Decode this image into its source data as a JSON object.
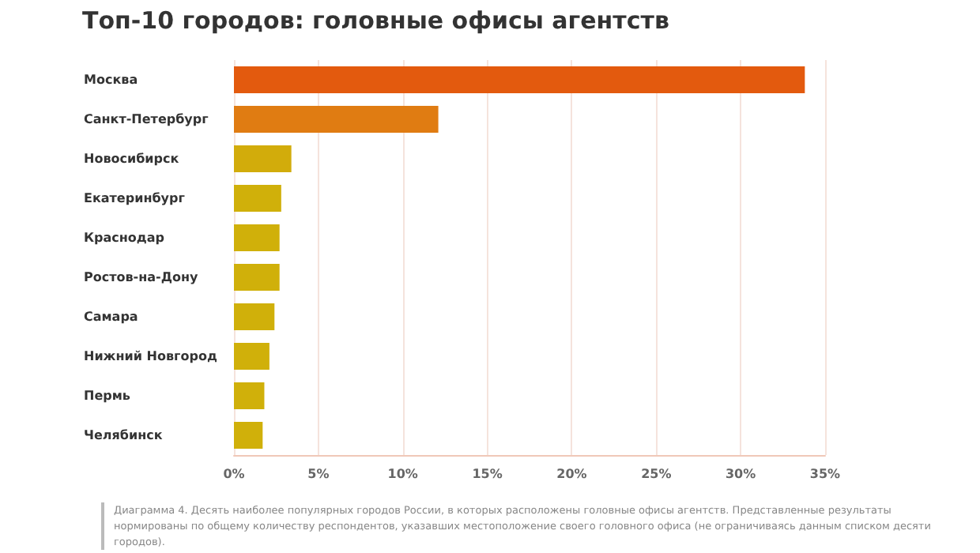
{
  "chart_data": {
    "type": "bar",
    "orientation": "horizontal",
    "title": "Топ-10 городов: головные офисы агентств",
    "categories": [
      "Москва",
      "Санкт-Петербург",
      "Новосибирск",
      "Екатеринбург",
      "Краснодар",
      "Ростов-на-Дону",
      "Самара",
      "Нижний Новгород",
      "Пермь",
      "Челябинск"
    ],
    "values": [
      33.8,
      12.1,
      3.4,
      2.8,
      2.7,
      2.7,
      2.4,
      2.1,
      1.8,
      1.7
    ],
    "colors": [
      "#e35a0e",
      "#e07c12",
      "#d2ac0b",
      "#d0b00a",
      "#d0b00a",
      "#d0b00a",
      "#d0b00a",
      "#d0b00a",
      "#d0b00a",
      "#d0b00a"
    ],
    "xlim": [
      0,
      35
    ],
    "xticks": [
      {
        "value": 0,
        "label": "0%"
      },
      {
        "value": 5,
        "label": "5%"
      },
      {
        "value": 10,
        "label": "10%"
      },
      {
        "value": 15,
        "label": "15%"
      },
      {
        "value": 20,
        "label": "20%"
      },
      {
        "value": 25,
        "label": "25%"
      },
      {
        "value": 30,
        "label": "30%"
      },
      {
        "value": 35,
        "label": "35%"
      }
    ],
    "grid": "x",
    "annotations": [
      "Диаграмма 4. Десять наиболее популярных городов России, в которых расположены головные офисы агентств. Представленные результаты нормированы по общему количеству респондентов, указавших местоположение своего головного офиса (не ограничиваясь данным списком десяти городов)."
    ]
  }
}
